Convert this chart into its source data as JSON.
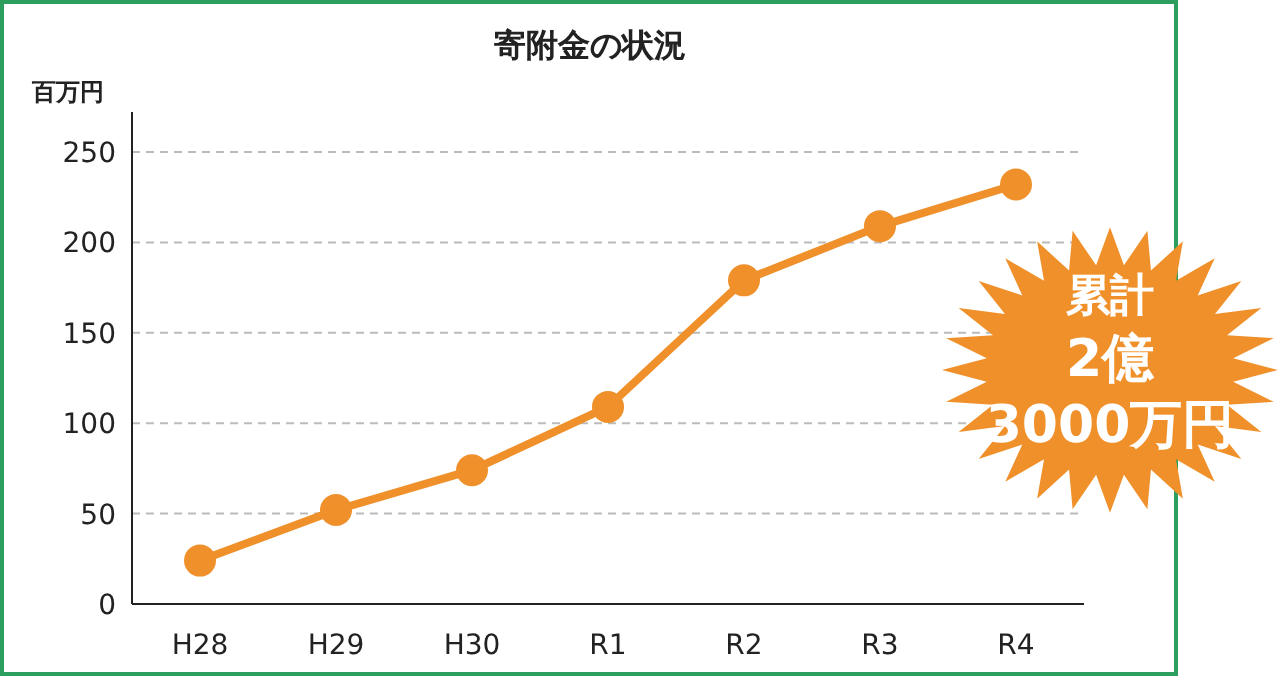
{
  "chart_data": {
    "type": "line",
    "title": "寄附金の状況",
    "ylabel": "百万円",
    "categories": [
      "H28",
      "H29",
      "H30",
      "R1",
      "R2",
      "R3",
      "R4"
    ],
    "series": [
      {
        "color": "#f0902a",
        "values": [
          24,
          52,
          74,
          109,
          179,
          209,
          232
        ]
      }
    ],
    "ylim": [
      0,
      250
    ],
    "yticks": [
      0,
      50,
      100,
      150,
      200,
      250
    ],
    "grid": "y",
    "marker": "circle",
    "line_style": "solid",
    "annotations": [
      "累計",
      "2億",
      "3000万円"
    ]
  }
}
